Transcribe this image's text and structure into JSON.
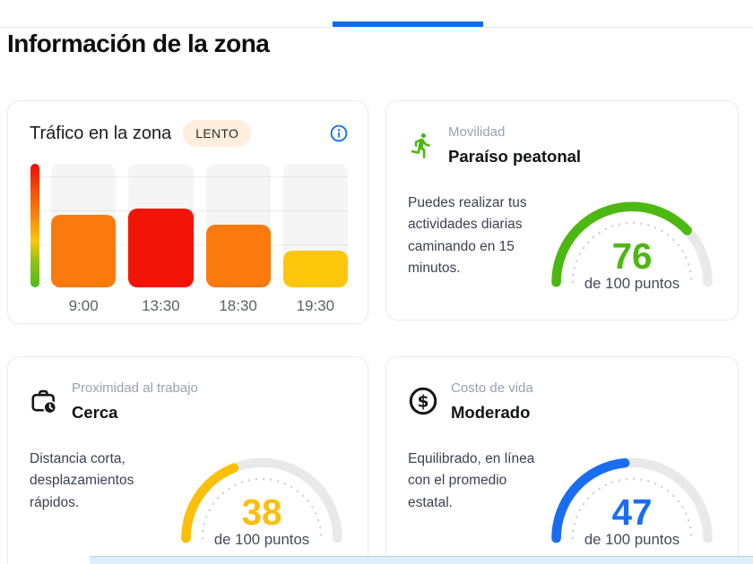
{
  "header": {
    "title": "Información de la zona"
  },
  "traffic_card": {
    "title": "Tráfico en la zona",
    "badge": "LENTO",
    "chart_data": {
      "type": "bar",
      "title": "Tráfico en la zona",
      "categories": [
        "9:00",
        "13:30",
        "18:30",
        "19:30"
      ],
      "values": [
        59,
        64,
        51,
        30
      ],
      "bar_colors": [
        "#fb7a0d",
        "#f31408",
        "#fb7a0d",
        "#fcc60a"
      ],
      "ylim": [
        0,
        100
      ],
      "grid": true,
      "legend_position": "left",
      "legend_gradient": [
        "#ee0b09 0%",
        "#f65608 24%",
        "#fb7d0c 40%",
        "#fdc60c 62%",
        "#8fc015 80%",
        "#52b91c 100%"
      ]
    }
  },
  "metric_cards": [
    {
      "id": "movilidad",
      "icon": "running-person-icon",
      "icon_color": "#4db812",
      "category": "Movilidad",
      "value_label": "Paraíso peatonal",
      "description": "Puedes realizar tus actividades diarias caminando en 15 minutos.",
      "score": 76,
      "score_max_label": "de 100 puntos",
      "score_color": "#4db812"
    },
    {
      "id": "proximidad-al-trabajo",
      "icon": "briefcase-clock-icon",
      "icon_color": "#15161a",
      "category": "Proximidad al trabajo",
      "value_label": "Cerca",
      "description": "Distancia corta, desplazamientos rápidos.",
      "score": 38,
      "score_max_label": "de 100 puntos",
      "score_color": "#fcbf0a"
    },
    {
      "id": "costo-de-vida",
      "icon": "dollar-circle-icon",
      "icon_color": "#15161a",
      "category": "Costo de vida",
      "value_label": "Moderado",
      "description": "Equilibrado, en línea con el promedio estatal.",
      "score": 47,
      "score_max_label": "de 100 puntos",
      "score_color": "#1a6df0"
    }
  ],
  "colors": {
    "tab_indicator": "#0b6bf3",
    "badge_bg": "#fdeede",
    "info_icon": "#1a6df0",
    "gauge_track": "#e9e9ea",
    "bottom_strip_bg": "#ddeefb",
    "bottom_strip_border": "#b3d4ec"
  }
}
